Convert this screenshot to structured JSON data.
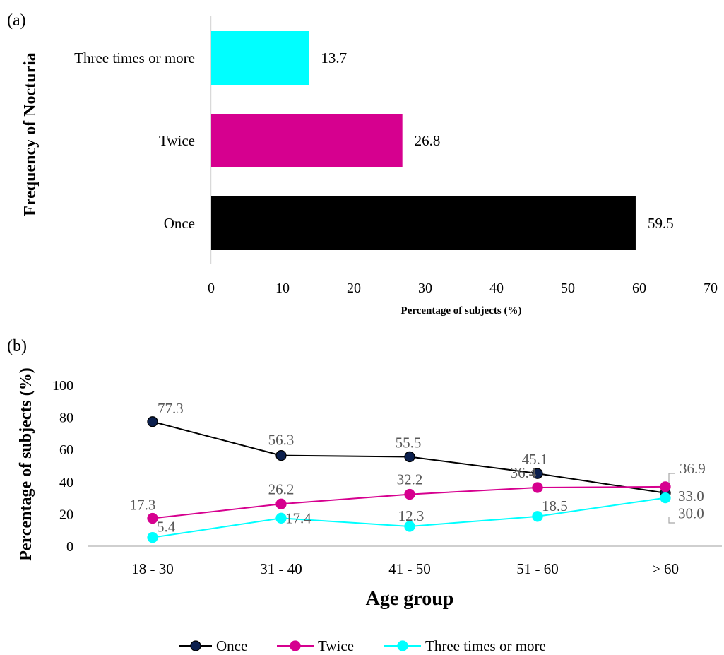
{
  "panel_a_label": "(a)",
  "panel_b_label": "(b)",
  "chart_data": [
    {
      "type": "bar",
      "orientation": "horizontal",
      "categories": [
        "Three times or more",
        "Twice",
        "Once"
      ],
      "values": [
        13.7,
        26.8,
        59.5
      ],
      "value_labels": [
        "13.7",
        "26.8",
        "59.5"
      ],
      "colors": [
        "#00ffff",
        "#d6008f",
        "#000000"
      ],
      "xlabel": "Percentage of subjects (%)",
      "ylabel": "Frequency of Nocturia",
      "xlim": [
        0,
        70
      ],
      "xticks": [
        "0",
        "10",
        "20",
        "30",
        "40",
        "50",
        "60",
        "70"
      ],
      "grid": false
    },
    {
      "type": "line",
      "categories": [
        "18 - 30",
        "31 - 40",
        "41 - 50",
        "51 - 60",
        "> 60"
      ],
      "series": [
        {
          "name": "Once",
          "values": [
            77.3,
            56.3,
            55.5,
            45.1,
            33.0
          ],
          "labels": [
            "77.3",
            "56.3",
            "55.5",
            "45.1",
            "33.0"
          ],
          "line_color": "#000000",
          "marker_color": "#0b1f4d"
        },
        {
          "name": "Twice",
          "values": [
            17.3,
            26.2,
            32.2,
            36.4,
            36.9
          ],
          "labels": [
            "17.3",
            "26.2",
            "32.2",
            "36.4",
            "36.9"
          ],
          "line_color": "#d6008f",
          "marker_color": "#d6008f"
        },
        {
          "name": "Three times or more",
          "values": [
            5.4,
            17.4,
            12.3,
            18.5,
            30.0
          ],
          "labels": [
            "5.4",
            "17.4",
            "12.3",
            "18.5",
            "30.0"
          ],
          "line_color": "#00ffff",
          "marker_color": "#00ffff"
        }
      ],
      "xlabel": "Age group",
      "ylabel": "Percentage of subjects (%)",
      "ylim": [
        0,
        100
      ],
      "yticks": [
        "0",
        "20",
        "40",
        "60",
        "80",
        "100"
      ],
      "legend": "bottom",
      "grid": false,
      "label_color": "#595959"
    }
  ]
}
